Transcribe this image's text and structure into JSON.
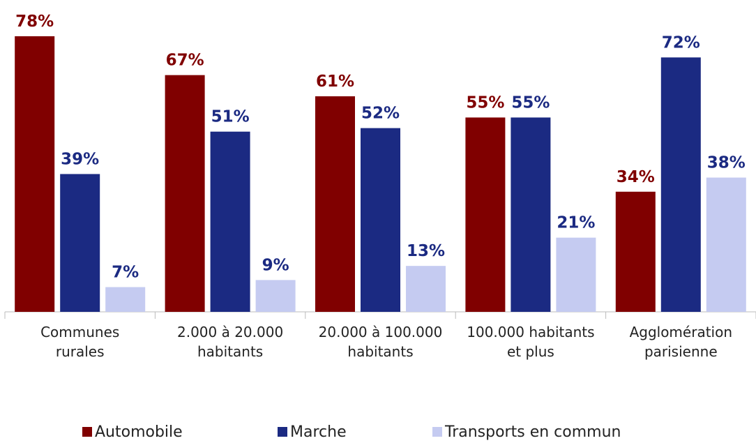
{
  "chart_data": {
    "type": "bar",
    "categories": [
      "Communes\nrurales",
      "2.000 à 20.000\nhabitants",
      "20.000 à 100.000\nhabitants",
      "100.000 habitants\net plus",
      "Agglomération\nparisienne"
    ],
    "series": [
      {
        "name": "Automobile",
        "color": "#800000",
        "label_color": "#800000",
        "values": [
          78,
          67,
          61,
          55,
          34
        ],
        "value_labels": [
          "78%",
          "67%",
          "61%",
          "55%",
          "34%"
        ]
      },
      {
        "name": "Marche",
        "color": "#1b2a82",
        "label_color": "#1b2a82",
        "values": [
          39,
          51,
          52,
          55,
          72
        ],
        "value_labels": [
          "39%",
          "51%",
          "52%",
          "55%",
          "72%"
        ]
      },
      {
        "name": "Transports en commun",
        "color": "#c5cbf1",
        "label_color": "#1b2a82",
        "values": [
          7,
          9,
          13,
          21,
          38
        ],
        "value_labels": [
          "7%",
          "9%",
          "13%",
          "21%",
          "38%"
        ]
      }
    ],
    "legend": "bottom"
  }
}
